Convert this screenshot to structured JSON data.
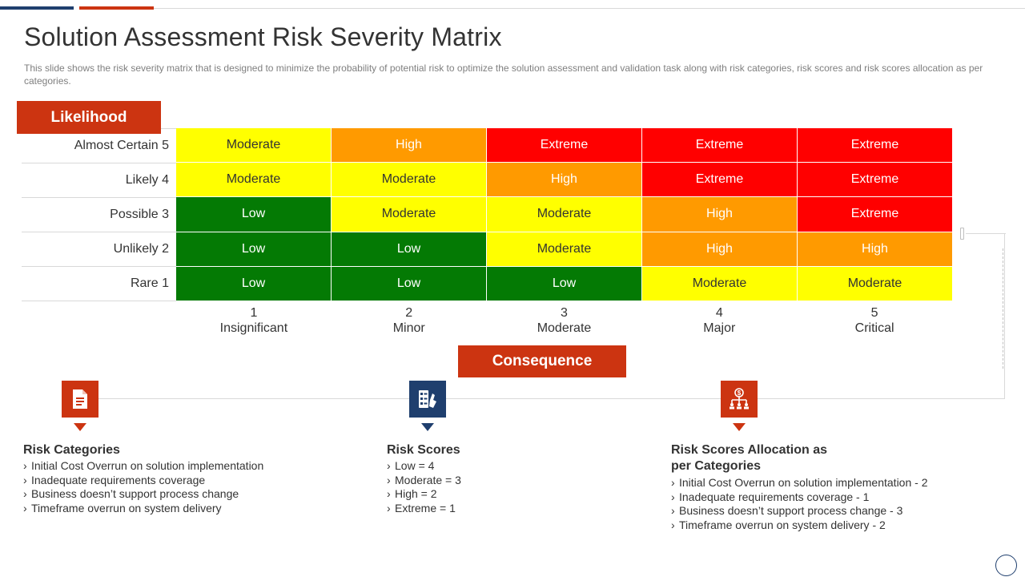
{
  "title": "Solution Assessment Risk Severity Matrix",
  "subtitle": "This slide shows the risk severity matrix that is designed to minimize the probability of potential risk to optimize the solution assessment and validation task along with risk categories, risk scores and risk scores allocation as per categories.",
  "likelihood_label": "Likelihood",
  "consequence_label": "Consequence",
  "rows": [
    {
      "label": "Almost Certain 5",
      "cells": [
        "Moderate",
        "High",
        "Extreme",
        "Extreme",
        "Extreme"
      ]
    },
    {
      "label": "Likely 4",
      "cells": [
        "Moderate",
        "Moderate",
        "High",
        "Extreme",
        "Extreme"
      ]
    },
    {
      "label": "Possible 3",
      "cells": [
        "Low",
        "Moderate",
        "Moderate",
        "High",
        "Extreme"
      ]
    },
    {
      "label": "Unlikely 2",
      "cells": [
        "Low",
        "Low",
        "Moderate",
        "High",
        "High"
      ]
    },
    {
      "label": "Rare 1",
      "cells": [
        "Low",
        "Low",
        "Low",
        "Moderate",
        "Moderate"
      ]
    }
  ],
  "columns": [
    {
      "number": "1",
      "name": "Insignificant"
    },
    {
      "number": "2",
      "name": "Minor"
    },
    {
      "number": "3",
      "name": "Moderate"
    },
    {
      "number": "4",
      "name": "Major"
    },
    {
      "number": "5",
      "name": "Critical"
    }
  ],
  "colors": {
    "Low": "#047a04",
    "Moderate": "#ffff00",
    "High": "#ff9a00",
    "Extreme": "#ff0000",
    "accent_red": "#cc3411",
    "accent_blue": "#1f3f6e"
  },
  "sections": {
    "risk_categories": {
      "icon": "document-icon",
      "title": "Risk Categories",
      "items": [
        "Initial Cost Overrun on solution implementation",
        "Inadequate requirements coverage",
        "Business doesn’t support process change",
        "Timeframe overrun on system delivery"
      ]
    },
    "risk_scores": {
      "icon": "scorecard-icon",
      "title": "Risk Scores",
      "items": [
        "Low = 4",
        "Moderate  = 3",
        "High = 2",
        "Extreme = 1"
      ]
    },
    "risk_allocation": {
      "icon": "dollar-hierarchy-icon",
      "title": "Risk Scores Allocation as per Categories",
      "items": [
        "Initial Cost Overrun on solution implementation - 2",
        "Inadequate requirements coverage - 1",
        "Business doesn’t support process change - 3",
        "Timeframe overrun on system delivery - 2"
      ]
    }
  }
}
